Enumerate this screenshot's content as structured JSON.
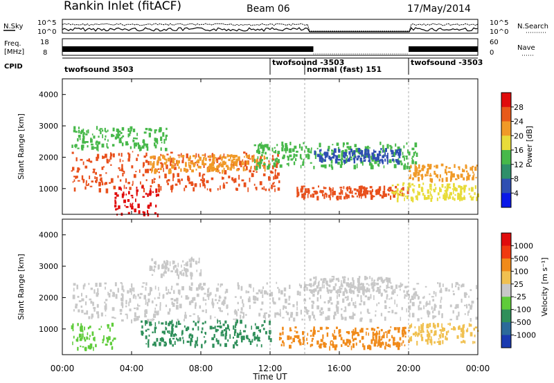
{
  "header": {
    "station": "Rankin Inlet (fitACF)",
    "beam": "Beam 06",
    "date": "17/May/2014"
  },
  "aux_panels": {
    "nsky_label": "N.Sky",
    "nsky_ticks": [
      "10^5",
      "10^0"
    ],
    "nsearch_label": "N.Search",
    "nsearch_ticks": [
      "10^5",
      "10^0"
    ],
    "freq_label_1": "Freq.",
    "freq_label_2": "[MHz]",
    "freq_ticks": [
      "18",
      "8"
    ],
    "nave_label": "Nave",
    "nave_ticks": [
      "60",
      "0"
    ],
    "cpid_label": "CPID"
  },
  "cpid_segments": [
    {
      "label": "twofsound 3503",
      "start_h": 0,
      "end_h": 12
    },
    {
      "label": "twofsound -3503",
      "start_h": 12,
      "end_h": 14
    },
    {
      "label": "normal (fast) 151",
      "start_h": 14,
      "end_h": 20
    },
    {
      "label": "twofsound -3503",
      "start_h": 20,
      "end_h": 24
    }
  ],
  "chart_data": [
    {
      "type": "heatmap",
      "quantity": "Power",
      "ylabel": "Slant Range [km]",
      "yticks": [
        1000,
        2000,
        3000,
        4000
      ],
      "ylim": [
        180,
        4500
      ],
      "colorbar_label": "Power [dB]",
      "colorbar_ticks": [
        "4",
        "8",
        "12",
        "16",
        "20",
        "24",
        "28"
      ],
      "colorbar_colors": [
        "#0a18e8",
        "#2f4fb2",
        "#2f8f6a",
        "#47b84a",
        "#e8dc3a",
        "#f09a28",
        "#e85a1a",
        "#e00c0c"
      ],
      "bands": [
        {
          "t0": 0.5,
          "t1": 12.5,
          "r0": 1000,
          "r1": 2200,
          "c": "#e8501c"
        },
        {
          "t0": 3.0,
          "t1": 5.5,
          "r0": 200,
          "r1": 1100,
          "c": "#e00c0c"
        },
        {
          "t0": 5.0,
          "t1": 12.0,
          "r0": 1600,
          "r1": 2100,
          "c": "#f09a28"
        },
        {
          "t0": 11.0,
          "t1": 20.5,
          "r0": 1700,
          "r1": 2500,
          "c": "#47b84a"
        },
        {
          "t0": 13.5,
          "t1": 20.0,
          "r0": 750,
          "r1": 1100,
          "c": "#e8501c"
        },
        {
          "t0": 14.5,
          "t1": 19.5,
          "r0": 1900,
          "r1": 2300,
          "c": "#2f4fb2"
        },
        {
          "t0": 20.0,
          "t1": 24.0,
          "r0": 1300,
          "r1": 1800,
          "c": "#f09a28"
        },
        {
          "t0": 0.5,
          "t1": 6.0,
          "r0": 2300,
          "r1": 3000,
          "c": "#47b84a"
        },
        {
          "t0": 19.0,
          "t1": 24.0,
          "r0": 700,
          "r1": 1200,
          "c": "#e8dc3a"
        }
      ]
    },
    {
      "type": "heatmap",
      "quantity": "Velocity",
      "xlabel": "Time UT",
      "ylabel": "Slant Range [km]",
      "xticks": [
        "00:00",
        "04:00",
        "08:00",
        "12:00",
        "16:00",
        "20:00",
        "00:00"
      ],
      "yticks": [
        1000,
        2000,
        3000,
        4000
      ],
      "ylim": [
        180,
        4500
      ],
      "colorbar_label": "Velocity [m s⁻¹]",
      "colorbar_ticks": [
        "1000",
        "500",
        "100",
        "25",
        "-25",
        "-100",
        "-500",
        "-1000"
      ],
      "colorbar_colors": [
        "#1a3ab0",
        "#2c6a9a",
        "#2f8f5a",
        "#5fcc3a",
        "#c8c8c8",
        "#f0c050",
        "#f08a1a",
        "#f03a10",
        "#e00c0c"
      ],
      "bands": [
        {
          "t0": 0.5,
          "t1": 24.0,
          "r0": 1300,
          "r1": 2500,
          "c": "#c8c8c8"
        },
        {
          "t0": 0.5,
          "t1": 3.0,
          "r0": 400,
          "r1": 1200,
          "c": "#5fcc3a"
        },
        {
          "t0": 4.5,
          "t1": 12.0,
          "r0": 500,
          "r1": 1300,
          "c": "#2f8f5a"
        },
        {
          "t0": 12.5,
          "t1": 20.0,
          "r0": 450,
          "r1": 1100,
          "c": "#f08a1a"
        },
        {
          "t0": 20.0,
          "t1": 24.0,
          "r0": 600,
          "r1": 1200,
          "c": "#f0c050"
        },
        {
          "t0": 14.0,
          "t1": 19.0,
          "r0": 2200,
          "r1": 2700,
          "c": "#c8c8c8"
        },
        {
          "t0": 5.0,
          "t1": 8.0,
          "r0": 2700,
          "r1": 3300,
          "c": "#c8c8c8"
        }
      ]
    }
  ]
}
